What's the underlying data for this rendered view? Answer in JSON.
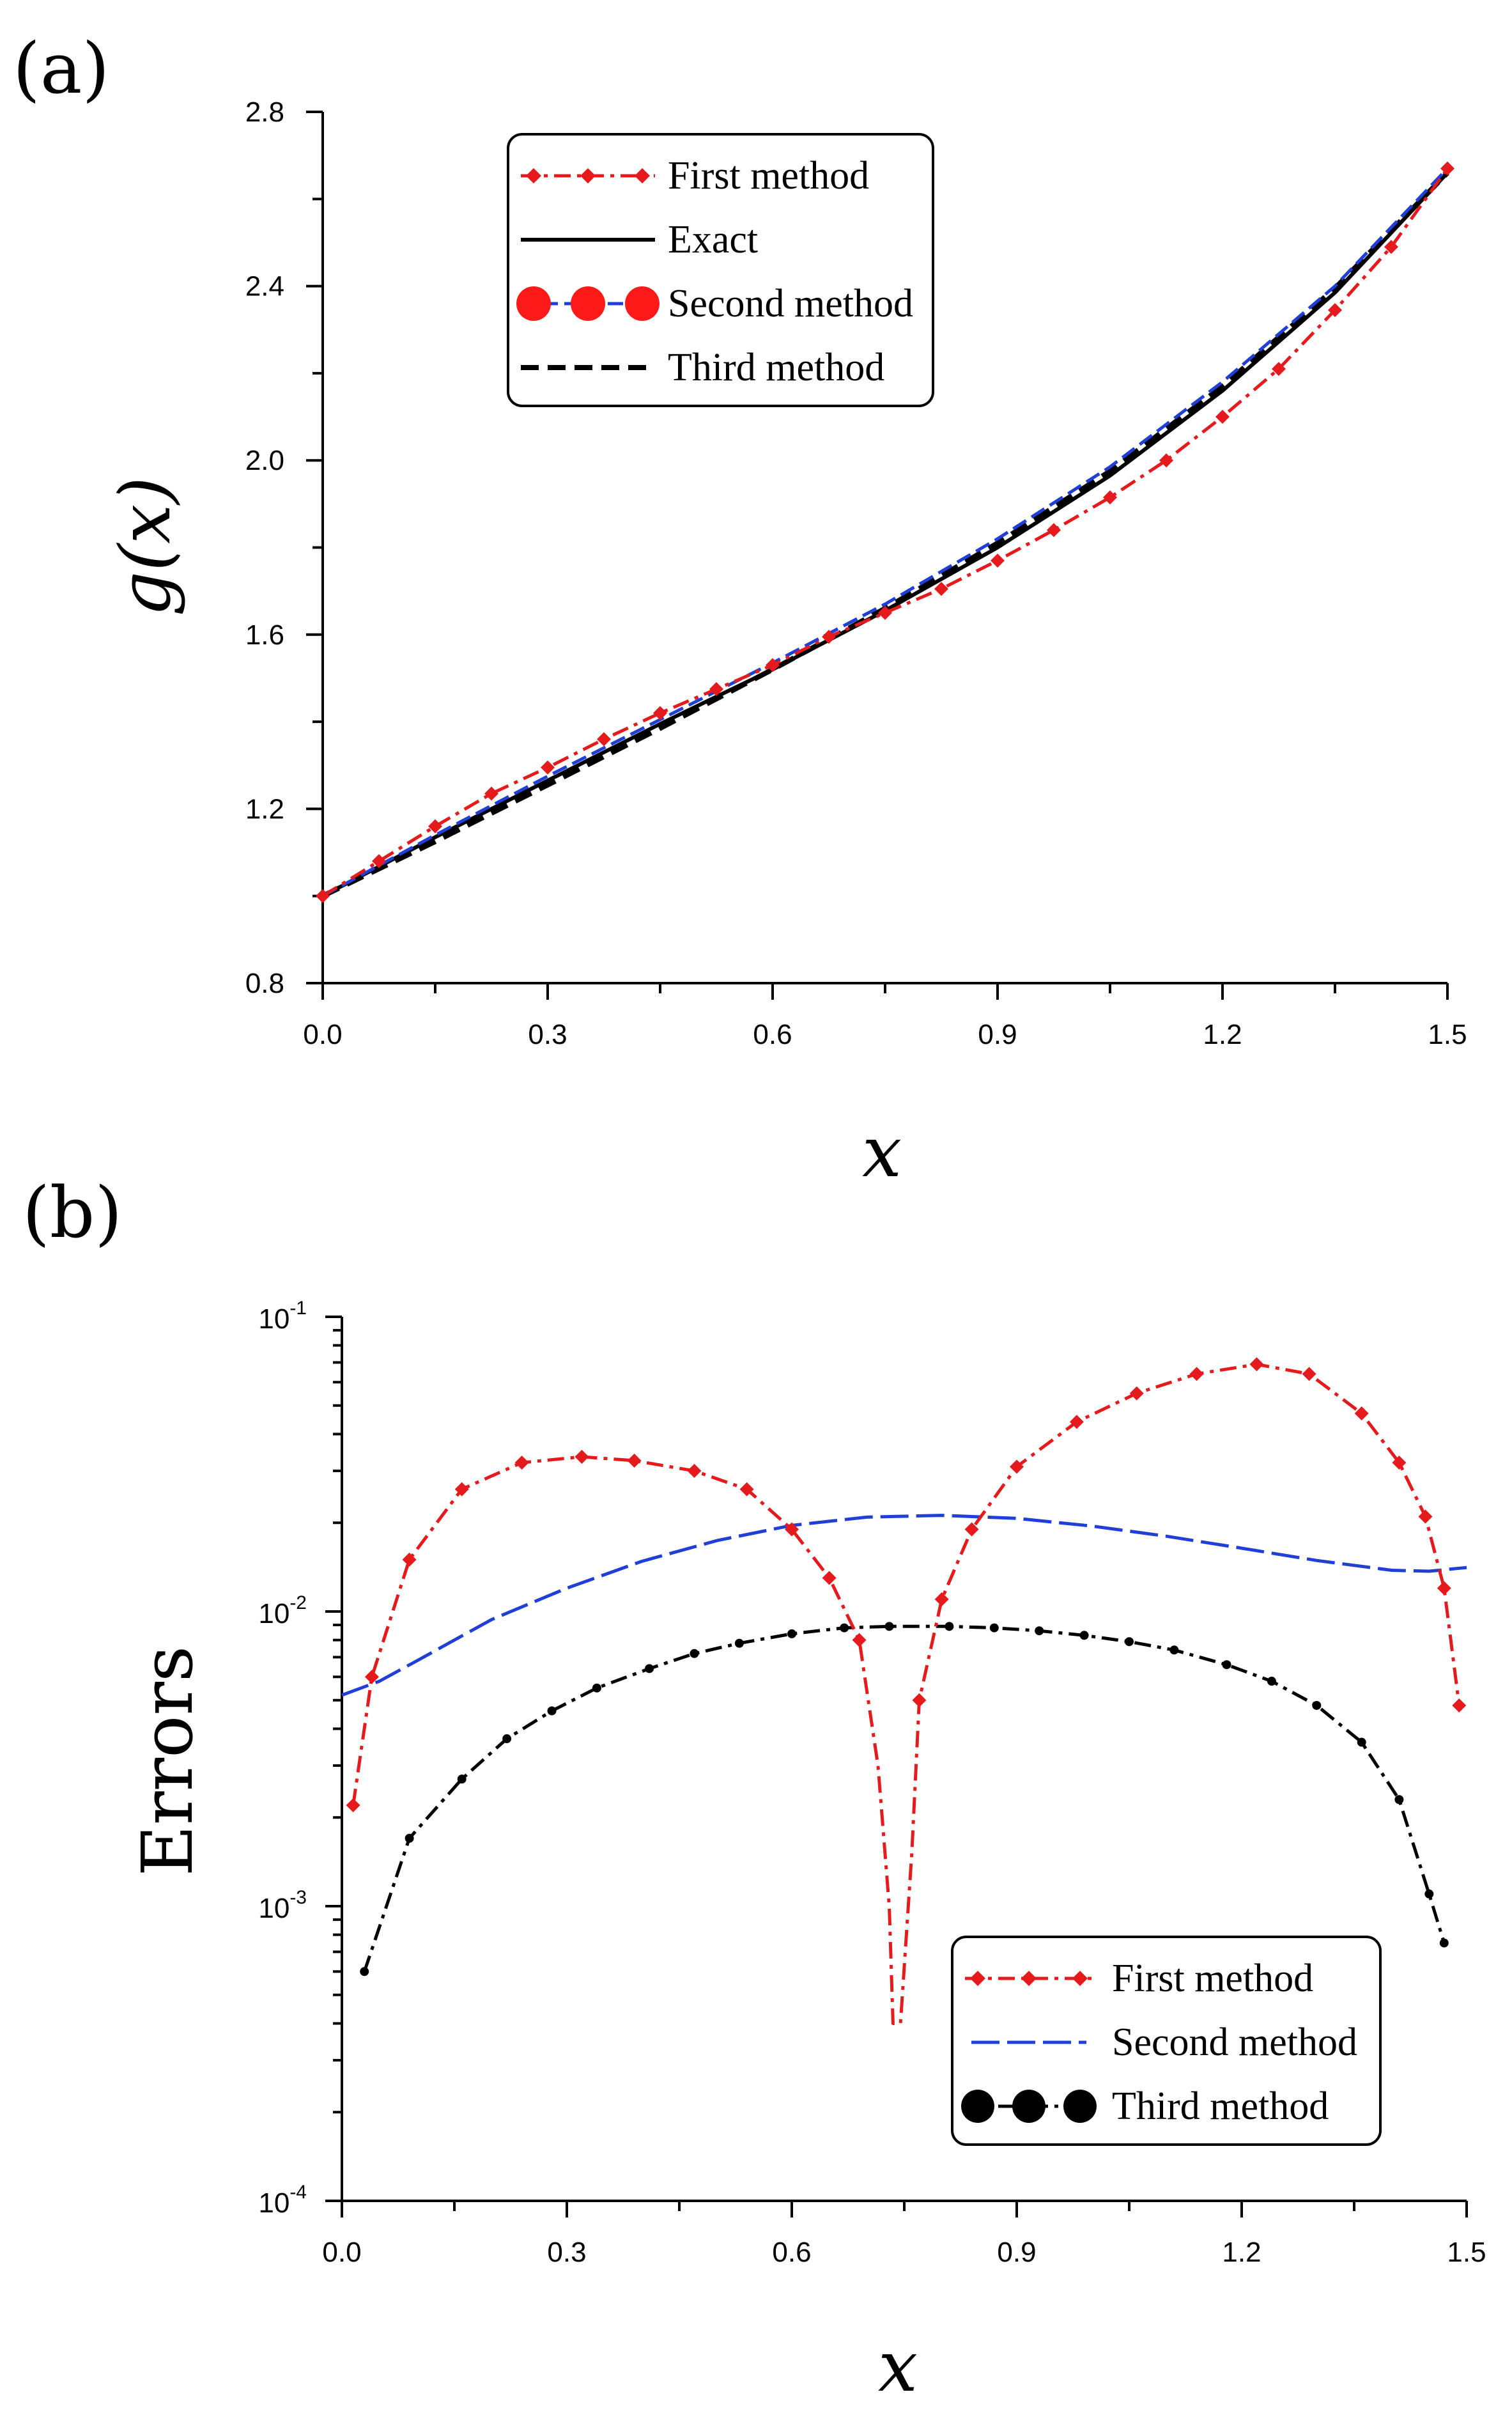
{
  "panel_labels": [
    "(a)",
    "(b)"
  ],
  "chart_data": [
    {
      "type": "line",
      "panel": "(a)",
      "xlabel": "x",
      "ylabel": "g(x)",
      "xlim": [
        0.0,
        1.5
      ],
      "ylim": [
        0.8,
        2.8
      ],
      "x_ticks": [
        "0.0",
        "0.3",
        "0.6",
        "0.9",
        "1.2",
        "1.5"
      ],
      "y_ticks": [
        "0.8",
        "1.2",
        "1.6",
        "2.0",
        "2.4",
        "2.8"
      ],
      "legend_placement": "top-left",
      "legend": [
        "First method",
        "Exact",
        "Second method",
        "Third method"
      ],
      "colors": {
        "first": "#e41a1c",
        "exact": "#000000",
        "second": "#1f3fd6",
        "third": "#000000",
        "marker_fill": "#ff1a1a"
      },
      "series": [
        {
          "name": "First method",
          "x": [
            0,
            0.075,
            0.15,
            0.225,
            0.3,
            0.375,
            0.45,
            0.525,
            0.6,
            0.675,
            0.75,
            0.825,
            0.9,
            0.975,
            1.05,
            1.125,
            1.2,
            1.275,
            1.35,
            1.425,
            1.5
          ],
          "values": [
            1.0,
            1.08,
            1.16,
            1.235,
            1.295,
            1.36,
            1.42,
            1.475,
            1.53,
            1.595,
            1.65,
            1.705,
            1.77,
            1.84,
            1.915,
            2.0,
            2.1,
            2.21,
            2.345,
            2.49,
            2.67
          ]
        },
        {
          "name": "Exact",
          "x": [
            0,
            0.15,
            0.3,
            0.45,
            0.6,
            0.75,
            0.9,
            1.05,
            1.2,
            1.35,
            1.5
          ],
          "values": [
            1.0,
            1.135,
            1.265,
            1.395,
            1.52,
            1.655,
            1.8,
            1.965,
            2.16,
            2.385,
            2.66
          ]
        },
        {
          "name": "Second method",
          "x": [
            0,
            0.15,
            0.3,
            0.45,
            0.6,
            0.75,
            0.9,
            1.05,
            1.2,
            1.35,
            1.5
          ],
          "values": [
            1.0,
            1.14,
            1.275,
            1.405,
            1.535,
            1.67,
            1.82,
            1.985,
            2.18,
            2.4,
            2.67
          ]
        },
        {
          "name": "Third method",
          "x": [
            0,
            0.15,
            0.3,
            0.45,
            0.6,
            0.75,
            0.9,
            1.05,
            1.2,
            1.35,
            1.5
          ],
          "values": [
            1.0,
            1.125,
            1.255,
            1.385,
            1.52,
            1.66,
            1.81,
            1.975,
            2.17,
            2.395,
            2.66
          ]
        }
      ]
    },
    {
      "type": "line",
      "panel": "(b)",
      "scale": "log",
      "xlabel": "x",
      "ylabel": "Errors",
      "xlim": [
        0.0,
        1.5
      ],
      "ylim": [
        0.0001,
        0.1
      ],
      "x_ticks": [
        "0.0",
        "0.3",
        "0.6",
        "0.9",
        "1.2",
        "1.5"
      ],
      "y_ticks": [
        {
          "base": "10",
          "exp": "-4",
          "value": 0.0001
        },
        {
          "base": "10",
          "exp": "-3",
          "value": 0.001
        },
        {
          "base": "10",
          "exp": "-2",
          "value": 0.01
        },
        {
          "base": "10",
          "exp": "-1",
          "value": 0.1
        }
      ],
      "legend_placement": "bottom-right",
      "legend": [
        "First method",
        "Second method",
        "Third method"
      ],
      "colors": {
        "first": "#e41a1c",
        "second": "#1f3fd6",
        "third": "#000000"
      },
      "series": [
        {
          "name": "First method",
          "x": [
            0.015,
            0.04,
            0.09,
            0.16,
            0.24,
            0.32,
            0.39,
            0.47,
            0.54,
            0.6,
            0.65,
            0.69,
            0.715,
            0.73,
            0.735,
            0.745,
            0.76,
            0.77,
            0.8,
            0.84,
            0.9,
            0.98,
            1.06,
            1.14,
            1.22,
            1.29,
            1.36,
            1.41,
            1.445,
            1.47,
            1.49
          ],
          "values": [
            0.0022,
            0.006,
            0.015,
            0.026,
            0.032,
            0.0335,
            0.0325,
            0.03,
            0.026,
            0.019,
            0.013,
            0.008,
            0.003,
            0.001,
            0.0004,
            0.0004,
            0.0015,
            0.005,
            0.011,
            0.019,
            0.031,
            0.044,
            0.055,
            0.064,
            0.069,
            0.064,
            0.047,
            0.032,
            0.021,
            0.012,
            0.0048
          ]
        },
        {
          "name": "Second method",
          "x": [
            0.0,
            0.05,
            0.1,
            0.15,
            0.2,
            0.3,
            0.4,
            0.5,
            0.6,
            0.7,
            0.8,
            0.9,
            1.0,
            1.1,
            1.2,
            1.3,
            1.4,
            1.45,
            1.5
          ],
          "values": [
            0.0052,
            0.0058,
            0.0068,
            0.008,
            0.0094,
            0.012,
            0.0148,
            0.0174,
            0.0196,
            0.0209,
            0.0212,
            0.0207,
            0.0195,
            0.018,
            0.0164,
            0.0149,
            0.0138,
            0.0137,
            0.0141
          ]
        },
        {
          "name": "Third method",
          "x": [
            0.03,
            0.09,
            0.16,
            0.22,
            0.28,
            0.34,
            0.41,
            0.47,
            0.53,
            0.6,
            0.67,
            0.73,
            0.81,
            0.87,
            0.93,
            0.99,
            1.05,
            1.11,
            1.18,
            1.24,
            1.3,
            1.36,
            1.41,
            1.45,
            1.47
          ],
          "values": [
            0.0006,
            0.0017,
            0.0027,
            0.0037,
            0.0046,
            0.0055,
            0.0064,
            0.0072,
            0.0078,
            0.0084,
            0.0088,
            0.0089,
            0.0089,
            0.0088,
            0.0086,
            0.0083,
            0.0079,
            0.0074,
            0.0066,
            0.0058,
            0.0048,
            0.0036,
            0.0023,
            0.0011,
            0.00075
          ]
        }
      ]
    }
  ]
}
